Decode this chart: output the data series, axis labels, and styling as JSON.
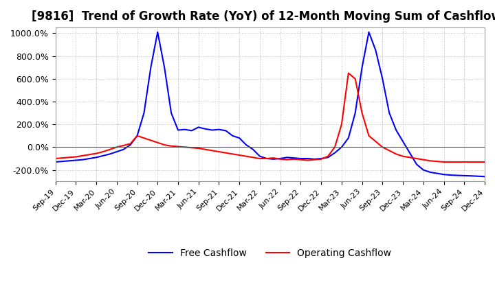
{
  "title": "[9816]  Trend of Growth Rate (YoY) of 12-Month Moving Sum of Cashflows",
  "title_fontsize": 12,
  "background_color": "#ffffff",
  "grid_color": "#bbbbbb",
  "operating_color": "#ff0000",
  "free_color": "#0000ff",
  "ylim": [
    -300,
    1050
  ],
  "yticks": [
    -200,
    0,
    200,
    400,
    600,
    800,
    1000
  ],
  "ytick_labels": [
    "-200.0%",
    "0.0%",
    "200.0%",
    "400.0%",
    "600.0%",
    "800.0%",
    "1000.0%"
  ],
  "dates_n": 64,
  "operating_cashflow": [
    -100,
    -95,
    -90,
    -85,
    -75,
    -65,
    -55,
    -40,
    -20,
    0,
    15,
    30,
    100,
    80,
    60,
    40,
    20,
    10,
    5,
    0,
    -5,
    -10,
    -20,
    -30,
    -40,
    -50,
    -60,
    -70,
    -80,
    -90,
    -100,
    -100,
    -95,
    -105,
    -110,
    -105,
    -110,
    -115,
    -110,
    -105,
    -80,
    0,
    200,
    650,
    600,
    300,
    100,
    50,
    0,
    -30,
    -60,
    -80,
    -90,
    -100,
    -110,
    -120,
    -125,
    -130,
    -130,
    -130,
    -130,
    -130,
    -130,
    -130
  ],
  "free_cashflow": [
    -130,
    -125,
    -120,
    -115,
    -110,
    -100,
    -90,
    -75,
    -60,
    -40,
    -20,
    20,
    100,
    300,
    700,
    1010,
    700,
    300,
    150,
    155,
    145,
    175,
    160,
    150,
    155,
    145,
    100,
    80,
    20,
    -20,
    -80,
    -100,
    -105,
    -100,
    -90,
    -95,
    -100,
    -100,
    -105,
    -100,
    -90,
    -50,
    0,
    80,
    300,
    700,
    1010,
    850,
    600,
    300,
    150,
    50,
    -50,
    -150,
    -200,
    -220,
    -230,
    -240,
    -245,
    -248,
    -250,
    -252,
    -255,
    -258
  ],
  "xtick_positions": [
    0,
    3,
    6,
    9,
    12,
    15,
    18,
    21,
    24,
    27,
    30,
    33,
    36,
    39,
    42,
    45,
    48,
    51,
    54,
    57,
    60,
    63
  ],
  "xtick_labels": [
    "Sep-19",
    "Dec-19",
    "Mar-20",
    "Jun-20",
    "Sep-20",
    "Dec-20",
    "Mar-21",
    "Jun-21",
    "Sep-21",
    "Dec-21",
    "Mar-22",
    "Jun-22",
    "Sep-22",
    "Dec-22",
    "Mar-23",
    "Jun-23",
    "Sep-23",
    "Dec-23",
    "Mar-24",
    "Jun-24",
    "Sep-24",
    "Dec-24"
  ]
}
